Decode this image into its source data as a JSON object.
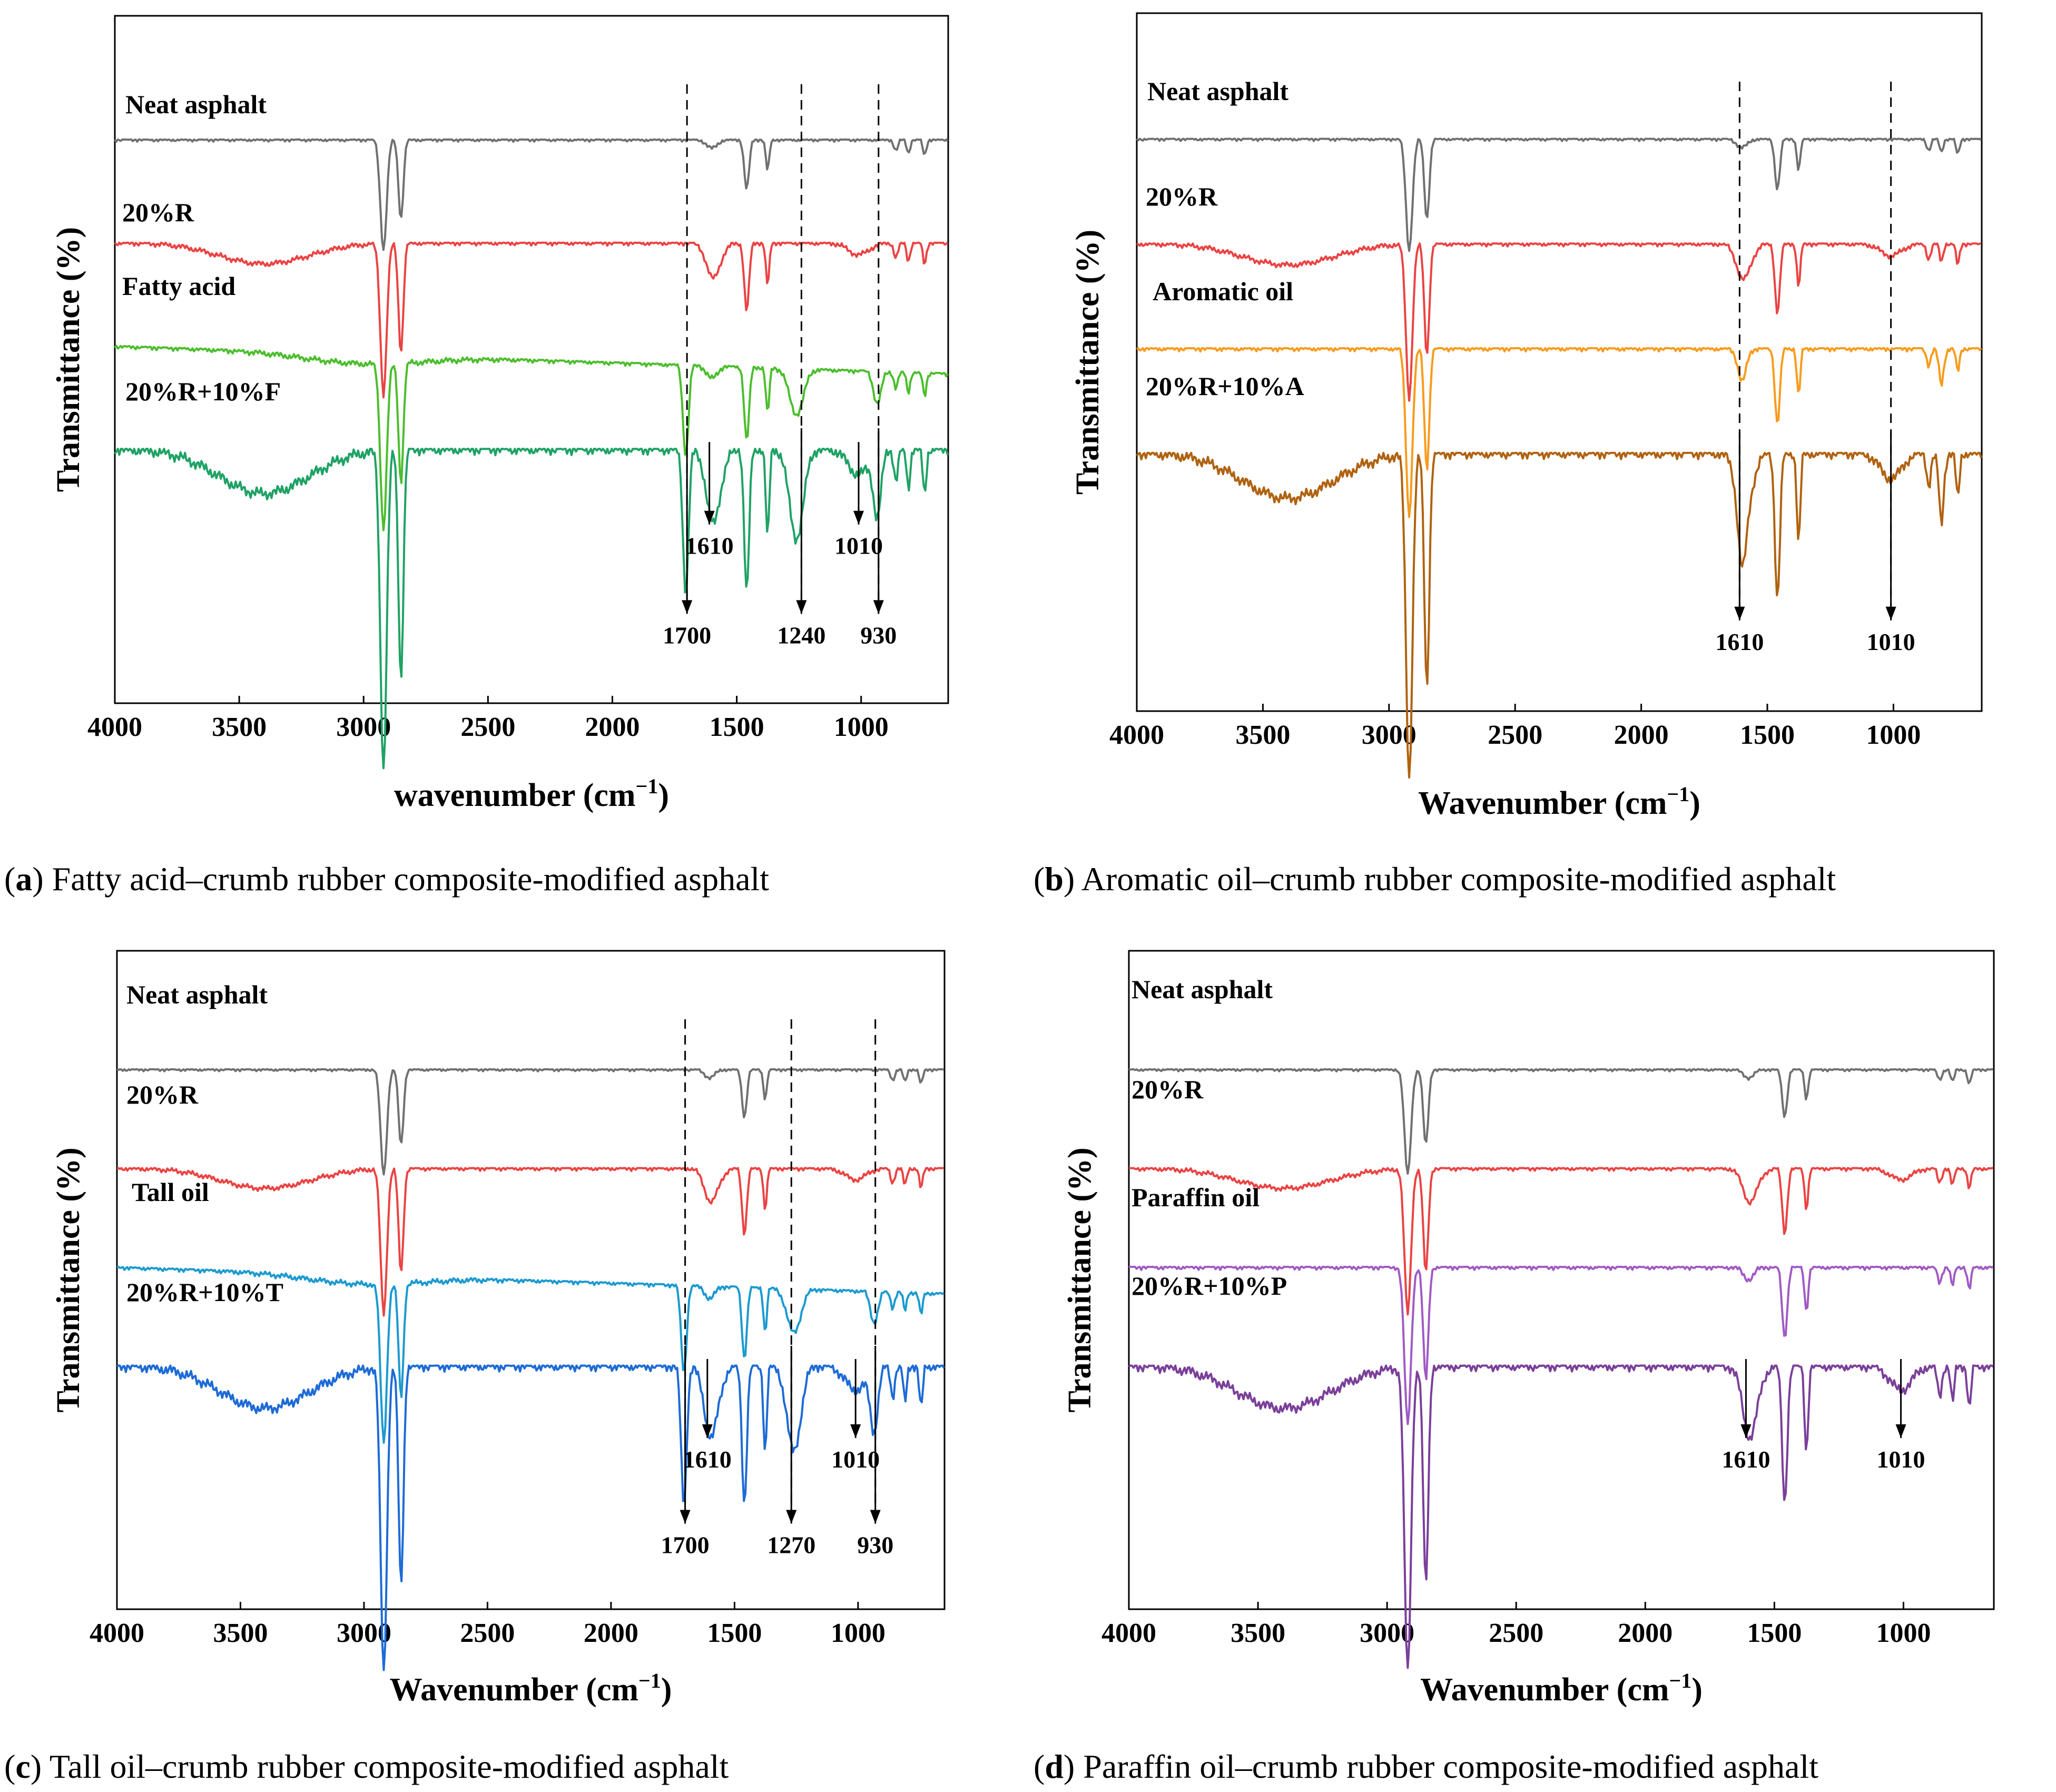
{
  "chart_data": [
    {
      "panel": "a",
      "type": "line",
      "caption_letter": "a",
      "caption_text": "Fatty acid–crumb rubber composite-modified asphalt",
      "ylabel": "Transmittance (%)",
      "xlabel": "wavenumber (cm",
      "xlabel_sup": "−1",
      "xlabel_close": ")",
      "xlim": [
        4000,
        650
      ],
      "xticks": [
        "4000",
        "3500",
        "3000",
        "2500",
        "2000",
        "1500",
        "1000"
      ],
      "series": [
        {
          "name": "Neat asphalt",
          "label": "Neat asphalt",
          "color": "#707070"
        },
        {
          "name": "20%R",
          "label": "20%R",
          "color": "#ea4343"
        },
        {
          "name": "Fatty acid",
          "label": "Fatty acid",
          "color": "#4bbe2d"
        },
        {
          "name": "20%R+10%F",
          "label": "20%R+10%F",
          "color": "#1fa265"
        }
      ],
      "annotations": [
        {
          "wn": 1700,
          "label": "1700",
          "dashed": true
        },
        {
          "wn": 1610,
          "label": "1610",
          "dashed": false
        },
        {
          "wn": 1240,
          "label": "1240",
          "dashed": true
        },
        {
          "wn": 1010,
          "label": "1010",
          "dashed": false
        },
        {
          "wn": 930,
          "label": "930",
          "dashed": true
        }
      ]
    },
    {
      "panel": "b",
      "type": "line",
      "caption_letter": "b",
      "caption_text": "Aromatic oil–crumb rubber composite-modified asphalt",
      "ylabel": "Transmittance (%)",
      "xlabel": "Wavenumber (cm",
      "xlabel_sup": "−1",
      "xlabel_close": ")",
      "xlim": [
        4000,
        650
      ],
      "xticks": [
        "4000",
        "3500",
        "3000",
        "2500",
        "2000",
        "1500",
        "1000"
      ],
      "series": [
        {
          "name": "Neat asphalt",
          "label": "Neat asphalt",
          "color": "#707070"
        },
        {
          "name": "20%R",
          "label": "20%R",
          "color": "#ea4343"
        },
        {
          "name": "Aromatic oil",
          "label": "Aromatic oil",
          "color": "#f89b1c"
        },
        {
          "name": "20%R+10%A",
          "label": "20%R+10%A",
          "color": "#b0620f"
        }
      ],
      "annotations": [
        {
          "wn": 1610,
          "label": "1610",
          "dashed": true
        },
        {
          "wn": 1010,
          "label": "1010",
          "dashed": true
        }
      ]
    },
    {
      "panel": "c",
      "type": "line",
      "caption_letter": "c",
      "caption_text": "Tall oil–crumb rubber composite-modified asphalt",
      "ylabel": "Transmittance (%)",
      "xlabel": "Wavenumber (cm",
      "xlabel_sup": "−1",
      "xlabel_close": ")",
      "xlim": [
        4000,
        650
      ],
      "xticks": [
        "4000",
        "3500",
        "3000",
        "2500",
        "2000",
        "1500",
        "1000"
      ],
      "series": [
        {
          "name": "Neat asphalt",
          "label": "Neat asphalt",
          "color": "#707070"
        },
        {
          "name": "20%R",
          "label": "20%R",
          "color": "#ea4343"
        },
        {
          "name": "Tall oil",
          "label": "Tall oil",
          "color": "#1b9ad0"
        },
        {
          "name": "20%R+10%T",
          "label": "20%R+10%T",
          "color": "#1d6bd6"
        }
      ],
      "annotations": [
        {
          "wn": 1700,
          "label": "1700",
          "dashed": true
        },
        {
          "wn": 1610,
          "label": "1610",
          "dashed": false
        },
        {
          "wn": 1270,
          "label": "1270",
          "dashed": true
        },
        {
          "wn": 1010,
          "label": "1010",
          "dashed": false
        },
        {
          "wn": 930,
          "label": "930",
          "dashed": true
        }
      ]
    },
    {
      "panel": "d",
      "type": "line",
      "caption_letter": "d",
      "caption_text": "Paraffin oil–crumb rubber composite-modified asphalt",
      "ylabel": "Transmittance (%)",
      "xlabel": "Wavenumber (cm",
      "xlabel_sup": "−1",
      "xlabel_close": ")",
      "xlim": [
        4000,
        650
      ],
      "xticks": [
        "4000",
        "3500",
        "3000",
        "2500",
        "2000",
        "1500",
        "1000"
      ],
      "series": [
        {
          "name": "Neat asphalt",
          "label": "Neat asphalt",
          "color": "#707070"
        },
        {
          "name": "20%R",
          "label": "20%R",
          "color": "#ea4343"
        },
        {
          "name": "Paraffin oil",
          "label": "Paraffin oil",
          "color": "#a15ac4"
        },
        {
          "name": "20%R+10%P",
          "label": "20%R+10%P",
          "color": "#7a3f9a"
        }
      ],
      "annotations": [
        {
          "wn": 1610,
          "label": "1610",
          "dashed": false
        },
        {
          "wn": 1010,
          "label": "1010",
          "dashed": false
        }
      ]
    }
  ]
}
